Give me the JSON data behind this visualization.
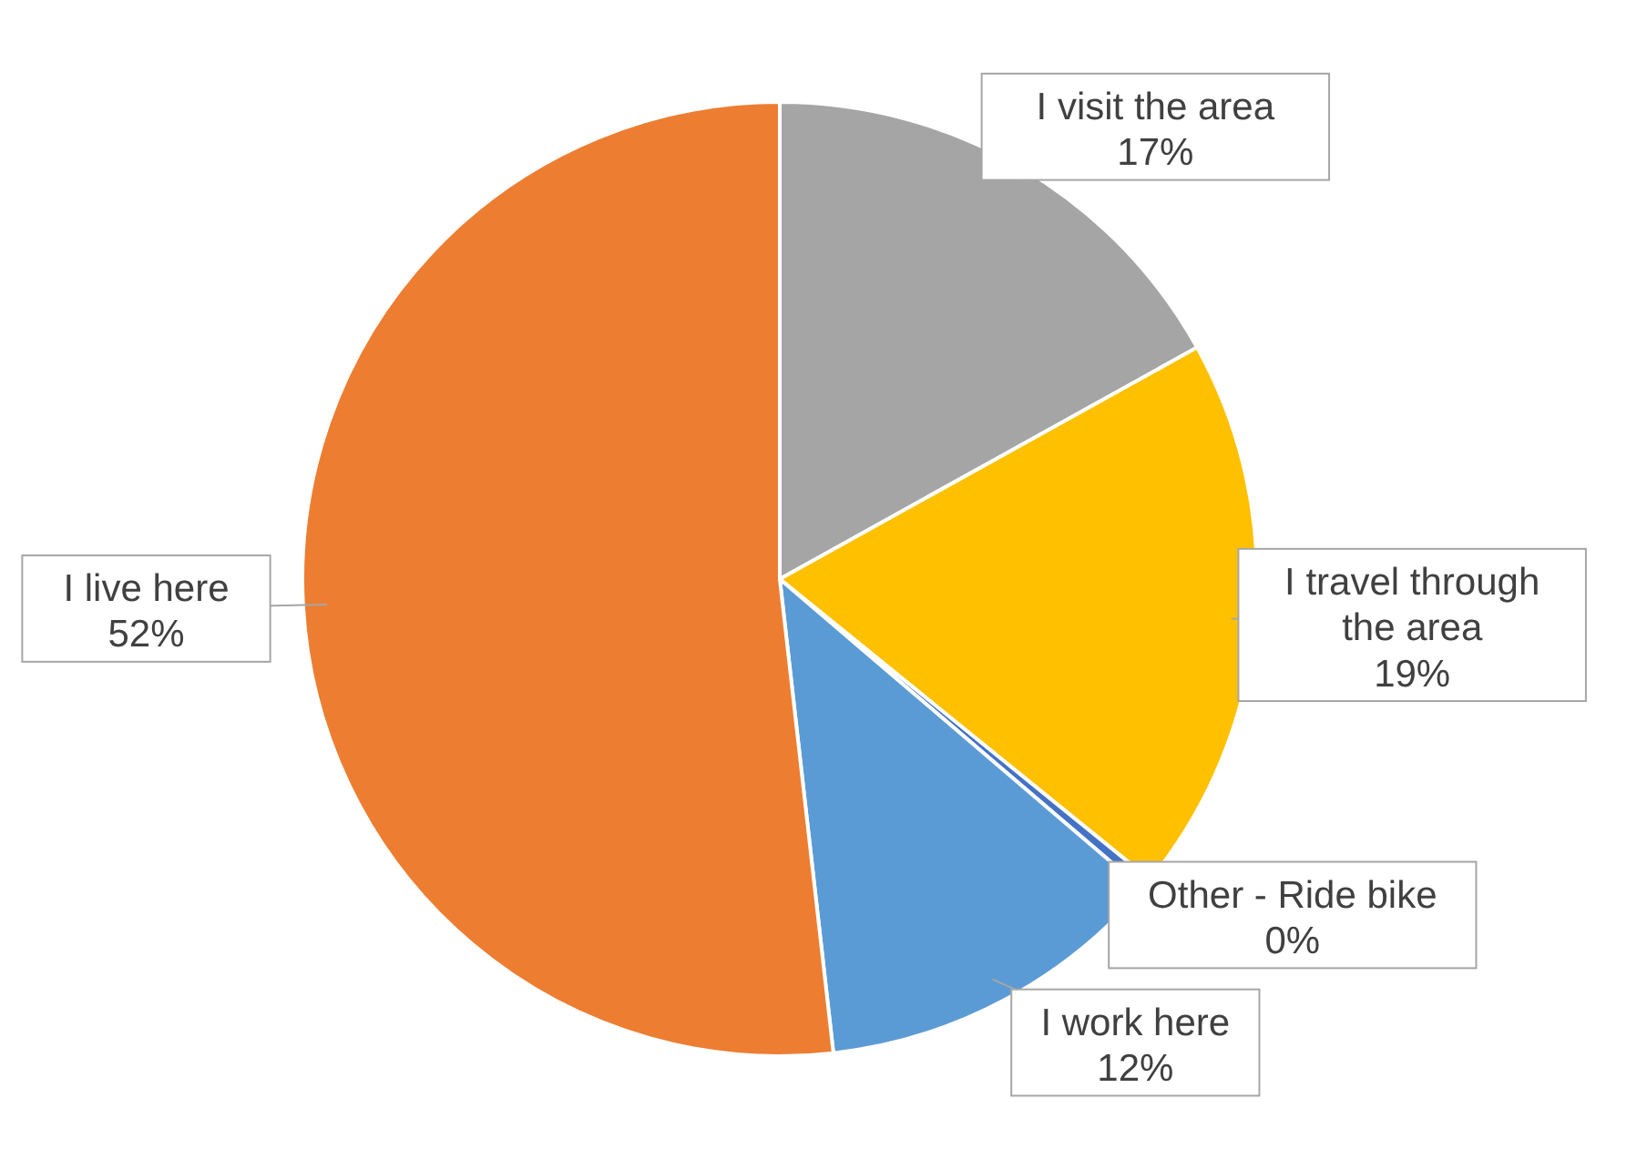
{
  "chart_data": {
    "type": "pie",
    "categories": [
      "I visit the area",
      "I travel through the area",
      "Other - Ride bike",
      "I work here",
      "I live here"
    ],
    "values": [
      17,
      19,
      0.4,
      12,
      52
    ],
    "value_labels": [
      "17%",
      "19%",
      "0%",
      "12%",
      "52%"
    ],
    "colors": [
      "#a5a5a5",
      "#ffc000",
      "#4472c4",
      "#5b9bd5",
      "#ed7d31"
    ]
  }
}
